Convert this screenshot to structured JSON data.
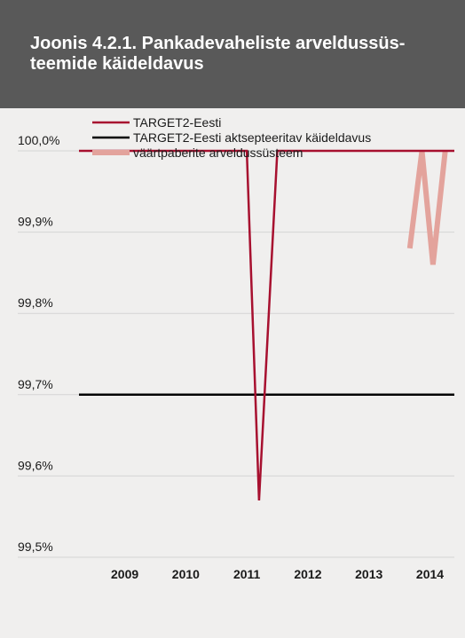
{
  "header": {
    "title": "Joonis 4.2.1. Pankadevaheliste arveldussüs-teemide käideldavus"
  },
  "colors": {
    "header_bg": "#595959",
    "background": "#f0efee",
    "target2": "#a7102f",
    "accepted": "#000000",
    "securities": "#e3a39c",
    "gridline": "#d4d4d4"
  },
  "chart_data": {
    "type": "line",
    "title": "Joonis 4.2.1. Pankadevaheliste arveldussüs-teemide käideldavus",
    "xlabel": "",
    "ylabel": "",
    "x_categories": [
      "2009",
      "2010",
      "2011",
      "2012",
      "2013",
      "2014"
    ],
    "xlim": [
      2008.7,
      2014.85
    ],
    "ylim": [
      99.5,
      100.0
    ],
    "y_ticks": [
      {
        "value": 100.0,
        "label": "100,0%"
      },
      {
        "value": 99.9,
        "label": "99,9%"
      },
      {
        "value": 99.8,
        "label": "99,8%"
      },
      {
        "value": 99.7,
        "label": "99,7%"
      },
      {
        "value": 99.6,
        "label": "99,6%"
      },
      {
        "value": 99.5,
        "label": "99,5%"
      }
    ],
    "grid": true,
    "legend_position": "top-left",
    "series": [
      {
        "name": "TARGET2-Eesti",
        "color": "#a7102f",
        "points": [
          [
            2008.7,
            100.0
          ],
          [
            2011.45,
            100.0
          ],
          [
            2011.65,
            99.57
          ],
          [
            2011.95,
            100.0
          ],
          [
            2014.85,
            100.0
          ]
        ]
      },
      {
        "name": "TARGET2-Eesti aktsepteeritav käideldavus",
        "color": "#000000",
        "points": [
          [
            2008.7,
            99.7
          ],
          [
            2014.85,
            99.7
          ]
        ]
      },
      {
        "name": "väärtpaberite arveldussüsteem",
        "color": "#e3a39c",
        "points": [
          [
            2014.12,
            99.88
          ],
          [
            2014.32,
            100.0
          ],
          [
            2014.5,
            99.86
          ],
          [
            2014.7,
            100.0
          ]
        ]
      }
    ]
  }
}
